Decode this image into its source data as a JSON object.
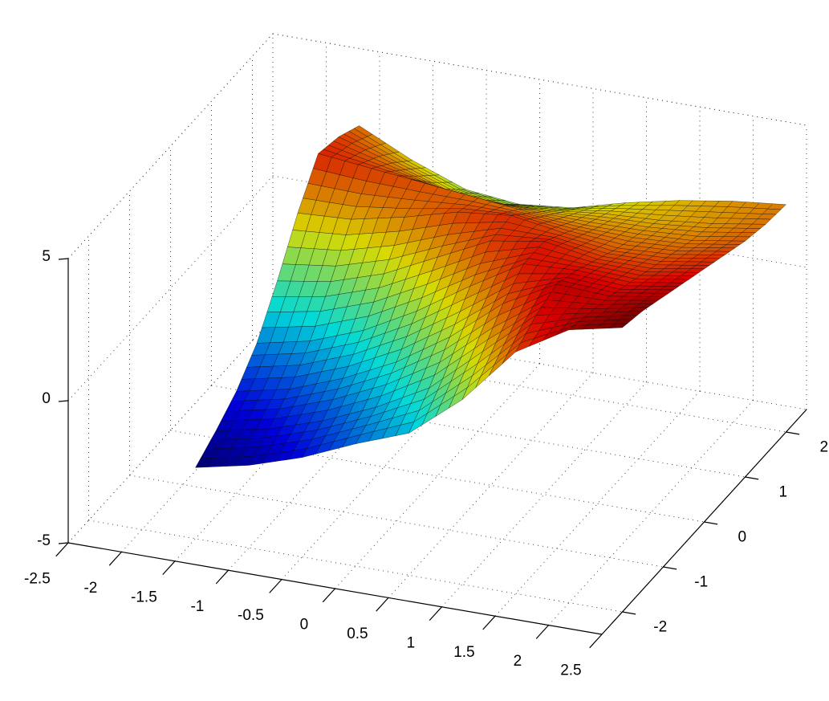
{
  "chart_data": {
    "type": "surface",
    "x": [
      -1.5,
      -1,
      -0.5,
      0,
      0.5,
      1,
      1.5,
      2,
      2.5
    ],
    "y": [
      -2,
      -1.5,
      -1,
      -0.5,
      0,
      0.5,
      1,
      1.5,
      2
    ],
    "z": [
      [
        -2.5,
        -2.1,
        -1.5,
        -0.7,
        0.0,
        1.5,
        3.5,
        4.6,
        5.0
      ],
      [
        -2.0,
        -1.6,
        -1.0,
        -0.2,
        0.8,
        2.4,
        4.0,
        4.4,
        4.8
      ],
      [
        -1.4,
        -1.0,
        -0.3,
        0.6,
        1.8,
        3.3,
        4.3,
        4.2,
        4.5
      ],
      [
        -0.5,
        -0.1,
        0.6,
        1.6,
        2.8,
        3.9,
        4.0,
        3.9,
        4.2
      ],
      [
        0.9,
        1.2,
        1.8,
        2.7,
        3.6,
        3.9,
        3.6,
        3.6,
        3.9
      ],
      [
        2.5,
        2.6,
        3.0,
        3.5,
        3.7,
        3.4,
        3.2,
        3.3,
        3.6
      ],
      [
        3.8,
        3.6,
        3.4,
        3.2,
        3.0,
        2.9,
        2.9,
        3.0,
        3.3
      ],
      [
        3.6,
        3.0,
        2.4,
        2.2,
        2.3,
        2.5,
        2.6,
        2.8,
        3.1
      ],
      [
        3.2,
        2.3,
        1.6,
        1.4,
        1.6,
        2.1,
        2.5,
        2.8,
        3.0
      ]
    ],
    "colormap": "jet",
    "edge_color": "#000000",
    "xlim": [
      -2.5,
      2.5
    ],
    "xticks": [
      -2.5,
      -2,
      -1.5,
      -1,
      -0.5,
      0,
      0.5,
      1,
      1.5,
      2,
      2.5
    ],
    "ylim": [
      -2.5,
      2.5
    ],
    "yticks": [
      -2,
      -1,
      0,
      1,
      2
    ],
    "zlim": [
      -5,
      5
    ],
    "zticks": [
      -5,
      0,
      5
    ],
    "grid": true
  }
}
